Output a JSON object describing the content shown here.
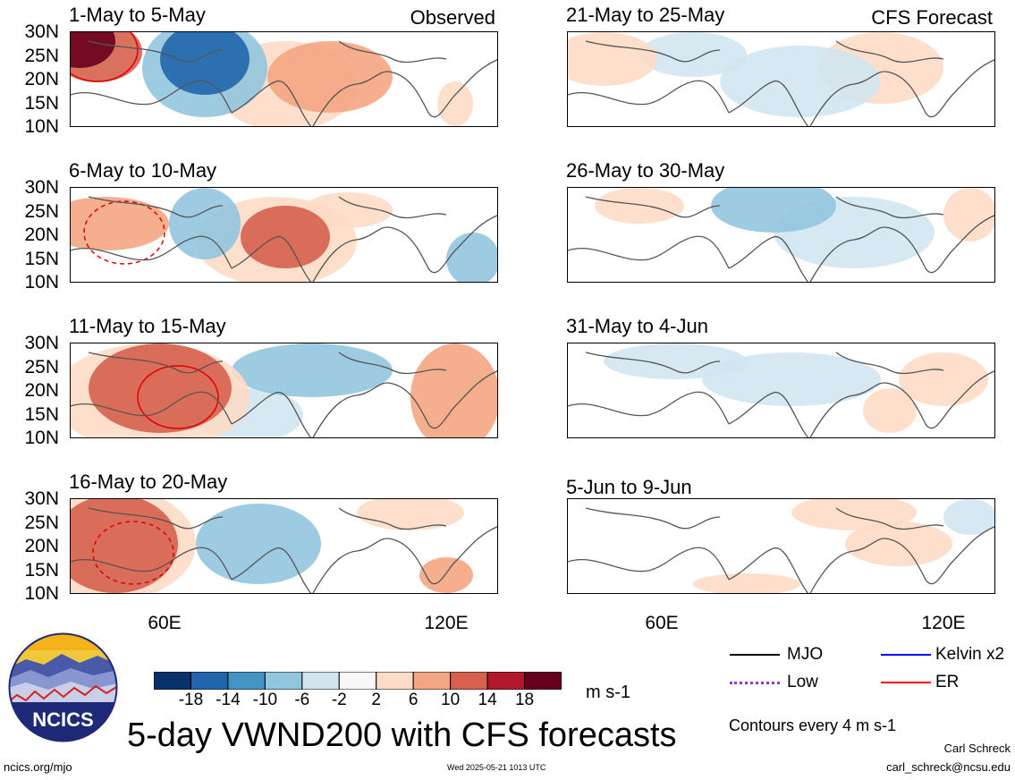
{
  "figure": {
    "title": "5-day VWND200 with CFS forecasts",
    "units": "m s-1",
    "contour_note": "Contours every 4 m s-1",
    "author": "Carl Schreck",
    "email": "carl_schreck@ncsu.edu",
    "site": "ncics.org/mjo",
    "timestamp": "Wed 2025-05-21 1013 UTC",
    "logo_text": "NCICS"
  },
  "columns": {
    "left_label": "Observed",
    "right_label": "CFS Forecast"
  },
  "panels": [
    {
      "title": "1-May to 5-May",
      "source": "observed"
    },
    {
      "title": "6-May to 10-May",
      "source": "observed"
    },
    {
      "title": "11-May to 15-May",
      "source": "observed"
    },
    {
      "title": "16-May to 20-May",
      "source": "observed"
    },
    {
      "title": "21-May to 25-May",
      "source": "forecast"
    },
    {
      "title": "26-May to 30-May",
      "source": "forecast"
    },
    {
      "title": "31-May to 4-Jun",
      "source": "forecast"
    },
    {
      "title": "5-Jun to 9-Jun",
      "source": "forecast"
    }
  ],
  "lat_labels": [
    "30N",
    "25N",
    "20N",
    "15N",
    "10N"
  ],
  "lon_labels": [
    "60E",
    "120E"
  ],
  "colorbar": {
    "ticks": [
      "-18",
      "-14",
      "-10",
      "-6",
      "-2",
      "2",
      "6",
      "10",
      "14",
      "18"
    ],
    "colors": [
      "#08306b",
      "#2166ac",
      "#4393c3",
      "#92c5de",
      "#d1e5f0",
      "#f7f7f7",
      "#fddbc7",
      "#f4a582",
      "#d6604d",
      "#b2182b",
      "#67001f"
    ]
  },
  "legend": [
    {
      "label": "MJO",
      "color": "#000000",
      "style": "solid"
    },
    {
      "label": "Kelvin x2",
      "color": "#0000ff",
      "style": "solid"
    },
    {
      "label": "Low",
      "color": "#9933cc",
      "style": "dotted"
    },
    {
      "label": "ER",
      "color": "#ff0000",
      "style": "solid"
    }
  ]
}
